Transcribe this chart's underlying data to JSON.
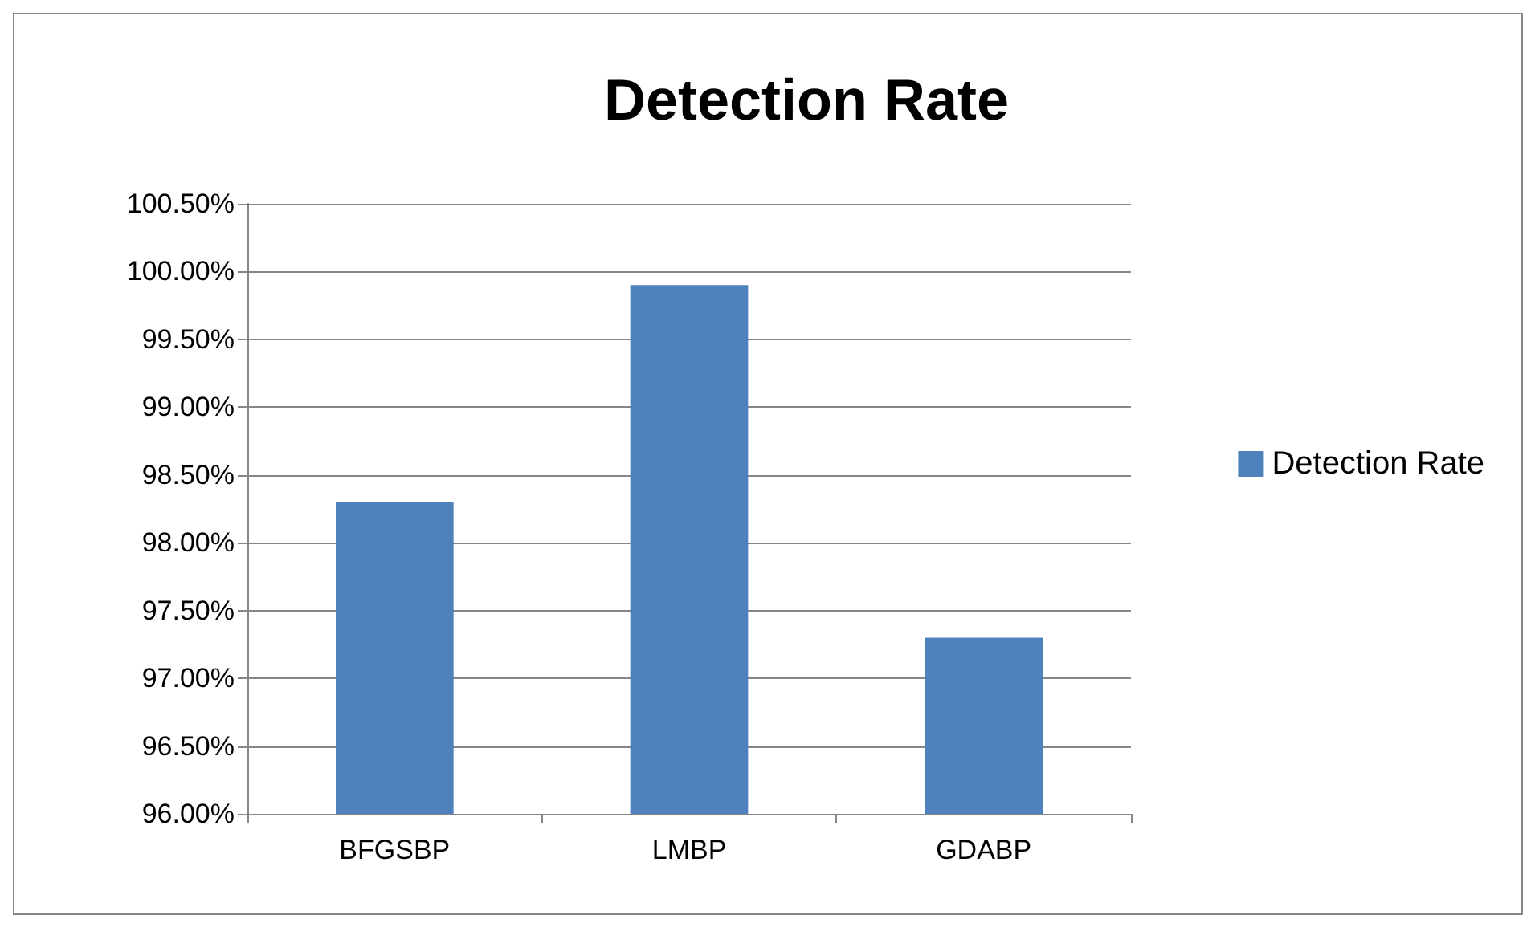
{
  "chart_data": {
    "type": "bar",
    "title": "Detection Rate",
    "categories": [
      "BFGSBP",
      "LMBP",
      "GDABP"
    ],
    "series": [
      {
        "name": "Detection Rate",
        "color": "#4f81bd",
        "values": [
          98.3,
          99.9,
          97.3
        ]
      }
    ],
    "ylim": [
      96,
      100.5
    ],
    "yticks": [
      {
        "value": 96,
        "label": "96.00%"
      },
      {
        "value": 96.5,
        "label": "96.50%"
      },
      {
        "value": 97,
        "label": "97.00%"
      },
      {
        "value": 97.5,
        "label": "97.50%"
      },
      {
        "value": 98,
        "label": "98.00%"
      },
      {
        "value": 98.5,
        "label": "98.50%"
      },
      {
        "value": 99,
        "label": "99.00%"
      },
      {
        "value": 99.5,
        "label": "99.50%"
      },
      {
        "value": 100,
        "label": "100.00%"
      },
      {
        "value": 100.5,
        "label": "100.50%"
      }
    ],
    "grid": "y",
    "legend": "right"
  }
}
